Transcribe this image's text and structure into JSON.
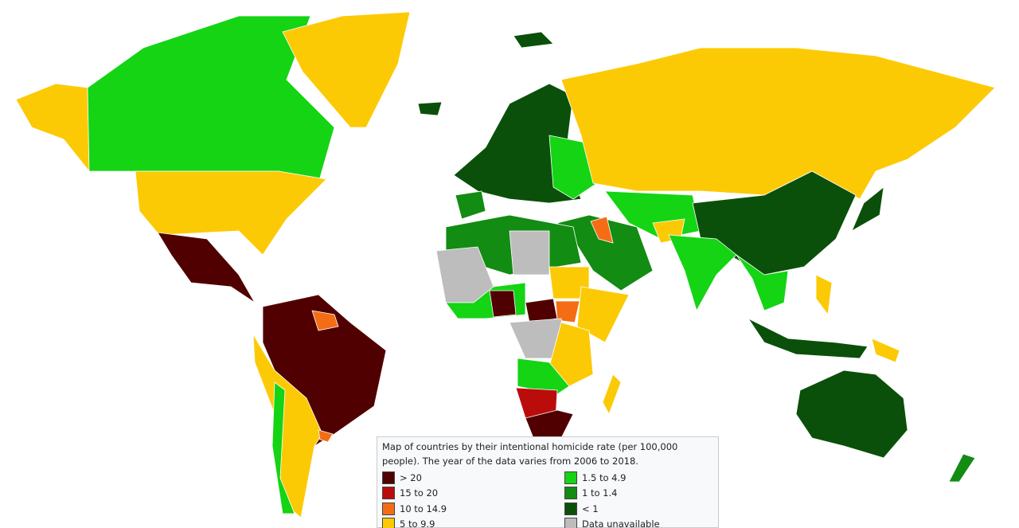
{
  "caption": "Map of countries by their intentional homicide rate (per 100,000 people). The year of the data varies from 2006 to 2018.",
  "legend": [
    {
      "label": "> 20",
      "color": "#500000"
    },
    {
      "label": "15 to 20",
      "color": "#bb0c0c"
    },
    {
      "label": "10 to 14.9",
      "color": "#f46d14"
    },
    {
      "label": "5 to 9.9",
      "color": "#fcca05"
    },
    {
      "label": "1.5 to 4.9",
      "color": "#14d414"
    },
    {
      "label": "1 to 1.4",
      "color": "#128c12"
    },
    {
      "label": "< 1",
      "color": "#0a500a"
    },
    {
      "label": "Data unavailable",
      "color": "#bdbdbd"
    }
  ]
}
